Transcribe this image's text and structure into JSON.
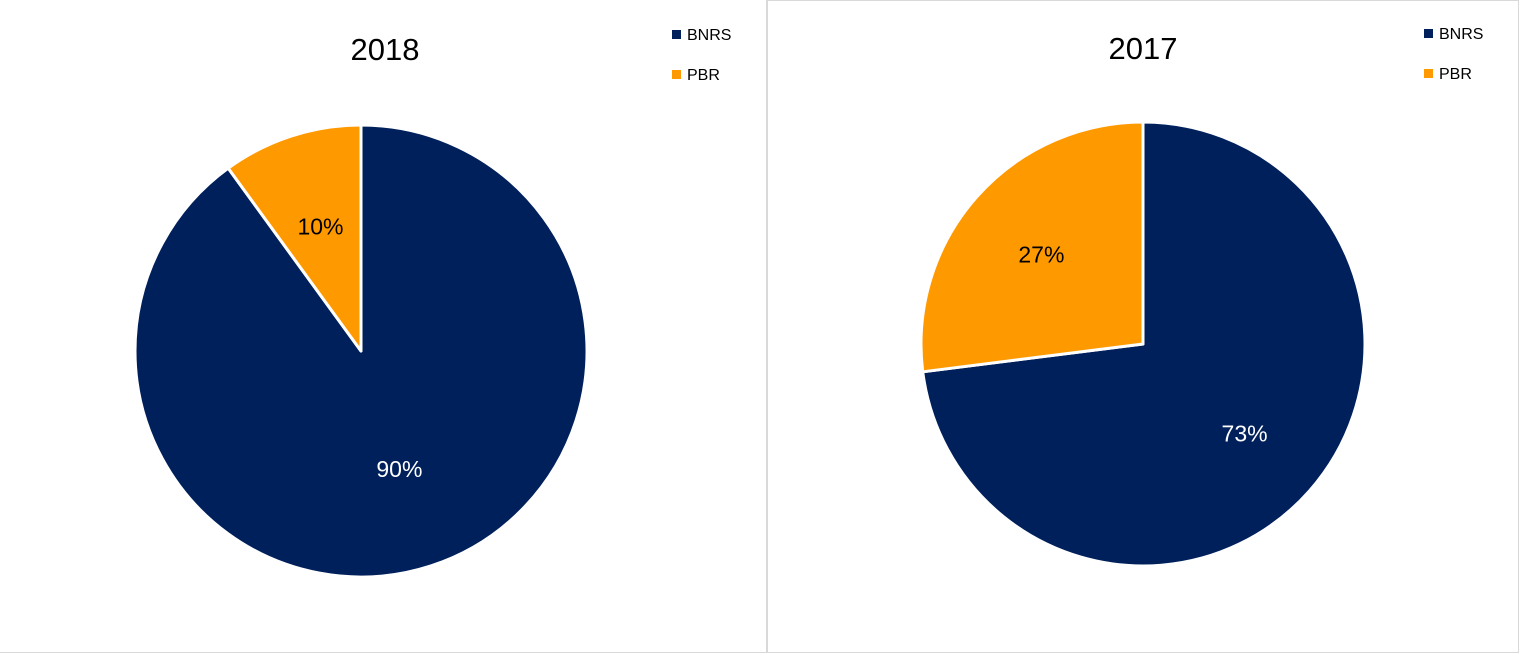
{
  "chart_data": [
    {
      "type": "pie",
      "title": "2018",
      "categories": [
        "BNRS",
        "PBR"
      ],
      "values": [
        90,
        10
      ],
      "data_labels": [
        "90%",
        "10%"
      ],
      "colors": [
        "#00205B",
        "#FF9900"
      ],
      "label_colors": [
        "#FFFFFF",
        "#000000"
      ],
      "legend": "top-right"
    },
    {
      "type": "pie",
      "title": "2017",
      "categories": [
        "BNRS",
        "PBR"
      ],
      "values": [
        73,
        27
      ],
      "data_labels": [
        "73%",
        "27%"
      ],
      "colors": [
        "#00205B",
        "#FF9900"
      ],
      "label_colors": [
        "#FFFFFF",
        "#000000"
      ],
      "legend": "top-right"
    }
  ]
}
